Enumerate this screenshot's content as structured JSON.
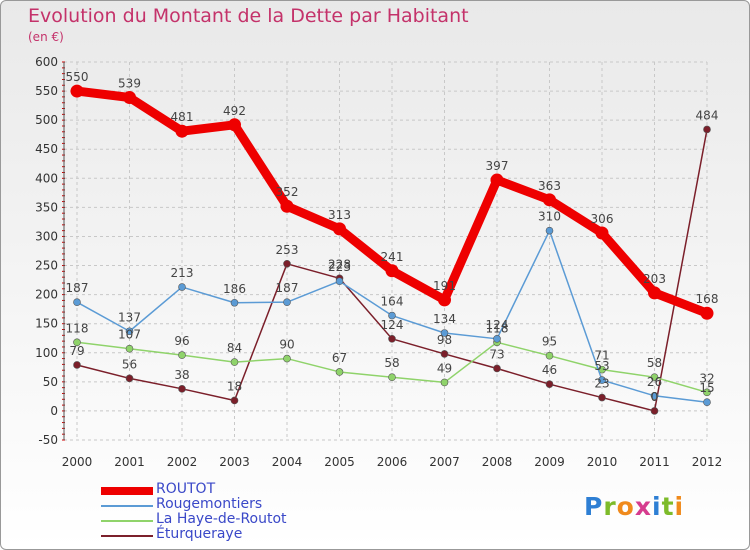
{
  "title": "Evolution du Montant de la Dette par Habitant",
  "unit": "(en €)",
  "logo": {
    "text": "Proxiti",
    "letter_colors": [
      "#2e7fd4",
      "#7dbb2a",
      "#f08a1c",
      "#d63c8e",
      "#2e7fd4",
      "#7dbb2a",
      "#f08a1c"
    ]
  },
  "colors": {
    "title": "#c4326a",
    "axis_text": "#333333",
    "grid": "#c8c8c8",
    "axis_ticks": "#cc0000"
  },
  "chart_data": {
    "type": "line",
    "title": "Evolution du Montant de la Dette par Habitant",
    "ylabel": "(en €)",
    "xlabel": "",
    "categories": [
      "2000",
      "2001",
      "2002",
      "2003",
      "2004",
      "2005",
      "2006",
      "2007",
      "2008",
      "2009",
      "2010",
      "2011",
      "2012"
    ],
    "ylim": [
      -50,
      600
    ],
    "yticks": [
      -50,
      0,
      50,
      100,
      150,
      200,
      250,
      300,
      350,
      400,
      450,
      500,
      550,
      600
    ],
    "grid": "horizontal",
    "legend_position": "bottom-left",
    "series": [
      {
        "name": "ROUTOT",
        "color": "#ee0000",
        "values": [
          550,
          539,
          481,
          492,
          352,
          313,
          241,
          191,
          397,
          363,
          306,
          203,
          168
        ]
      },
      {
        "name": "Rougemontiers",
        "color": "#5b9bd5",
        "values": [
          187,
          137,
          213,
          186,
          187,
          223,
          164,
          134,
          124,
          310,
          53,
          26,
          15
        ]
      },
      {
        "name": "La Haye-de-Routot",
        "color": "#8fd36a",
        "values": [
          118,
          107,
          96,
          84,
          90,
          67,
          58,
          49,
          118,
          95,
          71,
          58,
          32
        ]
      },
      {
        "name": "Éturqueraye",
        "color": "#7b1f2a",
        "values": [
          79,
          56,
          38,
          18,
          253,
          228,
          124,
          98,
          73,
          46,
          23,
          0,
          484
        ]
      }
    ]
  }
}
